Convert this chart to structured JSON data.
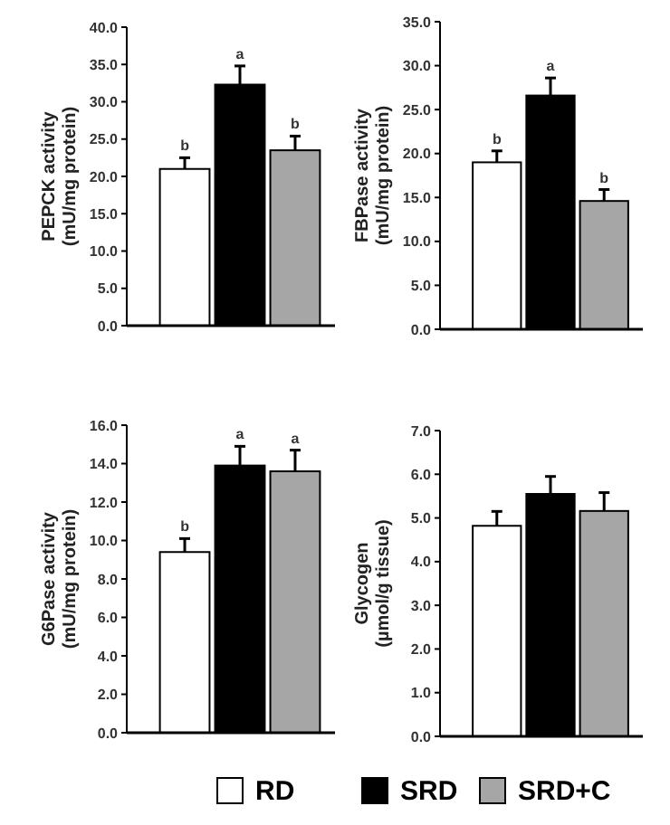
{
  "chart_data": [
    {
      "type": "bar",
      "ylabel": "PEPCK activity\n(mU/mg protein)",
      "categories": [
        null
      ],
      "ylim": [
        0,
        40
      ],
      "yticks": [
        {
          "value": 0,
          "label": "0.0"
        },
        {
          "value": 5,
          "label": "5.0"
        },
        {
          "value": 10,
          "label": "10.0"
        },
        {
          "value": 15,
          "label": "15.0"
        },
        {
          "value": 20,
          "label": "20.0"
        },
        {
          "value": 25,
          "label": "25.0"
        },
        {
          "value": 30,
          "label": "30.0"
        },
        {
          "value": 35,
          "label": "35.0"
        },
        {
          "value": 40,
          "label": "40.0"
        }
      ],
      "legend": "bottom",
      "series": [
        {
          "name": "RD",
          "color": "#ffffff",
          "values": [
            21.0
          ],
          "errors": [
            [
              21.0,
              22.5
            ]
          ],
          "value_labels": [
            "b"
          ]
        },
        {
          "name": "SRD",
          "color": "#000000",
          "values": [
            32.3
          ],
          "errors": [
            [
              32.3,
              34.8
            ]
          ],
          "value_labels": [
            "a"
          ]
        },
        {
          "name": "SRD+C",
          "color": "#a6a6a6",
          "values": [
            23.5
          ],
          "errors": [
            [
              23.5,
              25.4
            ]
          ],
          "value_labels": [
            "b"
          ]
        }
      ]
    },
    {
      "type": "bar",
      "ylabel": "FBPase activity\n(mU/mg protein)",
      "categories": [
        null
      ],
      "ylim": [
        0,
        35
      ],
      "yticks": [
        {
          "value": 0,
          "label": "0.0"
        },
        {
          "value": 5,
          "label": "5.0"
        },
        {
          "value": 10,
          "label": "10.0"
        },
        {
          "value": 15,
          "label": "15.0"
        },
        {
          "value": 20,
          "label": "20.0"
        },
        {
          "value": 25,
          "label": "25.0"
        },
        {
          "value": 30,
          "label": "30.0"
        },
        {
          "value": 35,
          "label": "35.0"
        }
      ],
      "series": [
        {
          "color": "#ffffff",
          "values": [
            19.0
          ],
          "errors": [
            [
              19.0,
              20.3
            ]
          ],
          "value_labels": [
            "b"
          ]
        },
        {
          "color": "#000000",
          "values": [
            26.6
          ],
          "errors": [
            [
              26.6,
              28.6
            ]
          ],
          "value_labels": [
            "a"
          ]
        },
        {
          "color": "#a6a6a6",
          "values": [
            14.6
          ],
          "errors": [
            [
              14.6,
              15.9
            ]
          ],
          "value_labels": [
            "b"
          ]
        }
      ]
    },
    {
      "type": "bar",
      "ylabel": "G6Pase activity\n(mU/mg protein)",
      "categories": [
        null
      ],
      "ylim": [
        0,
        16
      ],
      "yticks": [
        {
          "value": 0,
          "label": "0.0"
        },
        {
          "value": 2,
          "label": "2.0"
        },
        {
          "value": 4,
          "label": "4.0"
        },
        {
          "value": 6,
          "label": "6.0"
        },
        {
          "value": 8,
          "label": "8.0"
        },
        {
          "value": 10,
          "label": "10.0"
        },
        {
          "value": 12,
          "label": "12.0"
        },
        {
          "value": 14,
          "label": "14.0"
        },
        {
          "value": 16,
          "label": "16.0"
        }
      ],
      "series": [
        {
          "color": "#ffffff",
          "values": [
            9.4
          ],
          "errors": [
            [
              9.4,
              10.1
            ]
          ],
          "value_labels": [
            "b"
          ]
        },
        {
          "color": "#000000",
          "values": [
            13.9
          ],
          "errors": [
            [
              13.9,
              14.9
            ]
          ],
          "value_labels": [
            "a"
          ]
        },
        {
          "color": "#a6a6a6",
          "values": [
            13.6
          ],
          "errors": [
            [
              13.6,
              14.7
            ]
          ],
          "value_labels": [
            "a"
          ]
        }
      ]
    },
    {
      "type": "bar",
      "ylabel": "Glycogen\n(µmol/g tissue)",
      "categories": [
        null
      ],
      "ylim": [
        0,
        7
      ],
      "yticks": [
        {
          "value": 0,
          "label": "0.0"
        },
        {
          "value": 1,
          "label": "1.0"
        },
        {
          "value": 2,
          "label": "2.0"
        },
        {
          "value": 3,
          "label": "3.0"
        },
        {
          "value": 4,
          "label": "4.0"
        },
        {
          "value": 5,
          "label": "5.0"
        },
        {
          "value": 6,
          "label": "6.0"
        },
        {
          "value": 7,
          "label": "7.0"
        }
      ],
      "series": [
        {
          "color": "#ffffff",
          "values": [
            4.82
          ],
          "errors": [
            [
              4.82,
              5.15
            ]
          ]
        },
        {
          "color": "#000000",
          "values": [
            5.55
          ],
          "errors": [
            [
              5.55,
              5.95
            ]
          ]
        },
        {
          "color": "#a6a6a6",
          "values": [
            5.16
          ],
          "errors": [
            [
              5.16,
              5.58
            ]
          ]
        }
      ]
    }
  ]
}
